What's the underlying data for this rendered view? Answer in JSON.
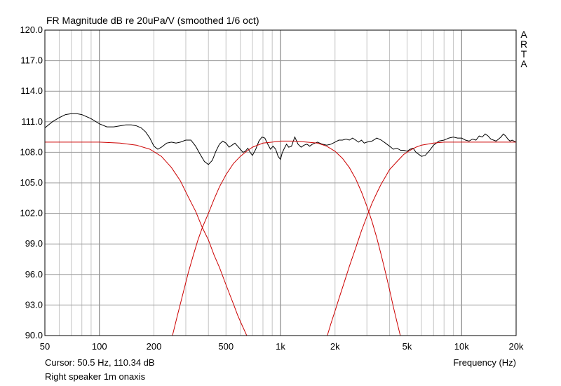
{
  "chart_data": {
    "type": "line",
    "title": "FR Magnitude dB re 20uPa/V (smoothed 1/6 oct)",
    "xlabel": "Frequency (Hz)",
    "ylabel": "",
    "x_scale": "log",
    "xlim": [
      50,
      20000
    ],
    "ylim": [
      90.0,
      120.0
    ],
    "grid": true,
    "x_ticks": [
      50,
      100,
      200,
      500,
      1000,
      2000,
      5000,
      10000,
      20000
    ],
    "x_tick_labels": [
      "50",
      "100",
      "200",
      "500",
      "1k",
      "2k",
      "5k",
      "10k",
      "20k"
    ],
    "y_ticks": [
      90.0,
      93.0,
      96.0,
      99.0,
      102.0,
      105.0,
      108.0,
      111.0,
      114.0,
      117.0,
      120.0
    ],
    "y_tick_labels": [
      "90.0",
      "93.0",
      "96.0",
      "99.0",
      "102.0",
      "105.0",
      "108.0",
      "111.0",
      "114.0",
      "117.0",
      "120.0"
    ],
    "series": [
      {
        "color": "#000000",
        "x": [
          50,
          55,
          60,
          65,
          70,
          75,
          80,
          90,
          100,
          110,
          120,
          130,
          140,
          150,
          160,
          170,
          180,
          190,
          200,
          210,
          220,
          235,
          250,
          265,
          280,
          300,
          320,
          340,
          360,
          380,
          400,
          420,
          440,
          460,
          480,
          500,
          520,
          540,
          560,
          580,
          600,
          620,
          640,
          660,
          680,
          700,
          730,
          760,
          790,
          820,
          850,
          880,
          910,
          940,
          970,
          1000,
          1020,
          1050,
          1080,
          1110,
          1150,
          1200,
          1250,
          1300,
          1350,
          1400,
          1450,
          1500,
          1600,
          1700,
          1800,
          1900,
          2000,
          2100,
          2200,
          2300,
          2400,
          2500,
          2600,
          2700,
          2800,
          2900,
          3000,
          3200,
          3400,
          3600,
          3800,
          4000,
          4200,
          4400,
          4600,
          4800,
          5000,
          5200,
          5400,
          5600,
          5800,
          6000,
          6300,
          6600,
          7000,
          7500,
          8000,
          8500,
          9000,
          9500,
          10000,
          10500,
          11000,
          11500,
          12000,
          12500,
          13000,
          13500,
          14000,
          14500,
          15000,
          15500,
          16000,
          16500,
          17000,
          17500,
          18000,
          18500,
          19000,
          20000
        ],
        "y": [
          110.4,
          111.0,
          111.4,
          111.7,
          111.8,
          111.8,
          111.7,
          111.3,
          110.8,
          110.5,
          110.5,
          110.6,
          110.7,
          110.7,
          110.6,
          110.4,
          110.0,
          109.4,
          108.6,
          108.3,
          108.5,
          108.9,
          109.0,
          108.9,
          109.0,
          109.2,
          109.2,
          108.6,
          107.8,
          107.1,
          106.8,
          107.2,
          108.1,
          108.8,
          109.1,
          108.9,
          108.5,
          108.7,
          108.9,
          108.6,
          108.3,
          108.0,
          108.1,
          108.4,
          108.0,
          107.7,
          108.3,
          109.1,
          109.5,
          109.4,
          108.8,
          108.3,
          108.6,
          108.3,
          107.6,
          107.3,
          107.9,
          108.4,
          108.8,
          108.5,
          108.6,
          109.5,
          108.8,
          108.5,
          108.7,
          108.8,
          108.6,
          108.8,
          109.0,
          108.8,
          108.7,
          108.8,
          109.0,
          109.2,
          109.2,
          109.3,
          109.2,
          109.4,
          109.2,
          109.0,
          109.2,
          108.9,
          109.0,
          109.1,
          109.4,
          109.2,
          108.9,
          108.6,
          108.3,
          108.4,
          108.2,
          108.2,
          108.1,
          108.3,
          108.4,
          108.0,
          107.8,
          107.6,
          107.7,
          108.1,
          108.7,
          109.1,
          109.2,
          109.4,
          109.5,
          109.4,
          109.4,
          109.2,
          109.1,
          109.3,
          109.2,
          109.6,
          109.5,
          109.8,
          109.6,
          109.3,
          109.2,
          109.1,
          109.3,
          109.5,
          109.8,
          109.6,
          109.3,
          109.1,
          109.2,
          109.0
        ]
      },
      {
        "color": "#cc0000",
        "x": [
          50,
          70,
          100,
          130,
          160,
          190,
          220,
          250,
          280,
          310,
          340,
          370,
          400,
          430,
          460,
          490,
          520,
          550,
          580,
          610,
          640,
          670
        ],
        "y": [
          109.0,
          109.0,
          109.0,
          108.9,
          108.7,
          108.3,
          107.6,
          106.5,
          105.2,
          103.6,
          102.2,
          100.6,
          99.4,
          97.9,
          96.7,
          95.4,
          94.2,
          93.1,
          92.0,
          91.1,
          90.3,
          89.5
        ]
      },
      {
        "color": "#cc0000",
        "x": [
          250,
          270,
          290,
          310,
          330,
          350,
          370,
          400,
          430,
          460,
          500,
          550,
          600,
          650,
          700,
          800,
          900,
          1000,
          1200,
          1400,
          1600,
          1800,
          2000,
          2200,
          2400,
          2600,
          2800,
          3000,
          3200,
          3400,
          3600,
          3800,
          4000,
          4200,
          4400,
          4600,
          4800
        ],
        "y": [
          89.6,
          92.0,
          94.2,
          96.2,
          97.9,
          99.4,
          100.6,
          102.0,
          103.4,
          104.6,
          105.8,
          106.9,
          107.6,
          108.1,
          108.5,
          108.9,
          109.0,
          109.1,
          109.1,
          109.0,
          108.9,
          108.6,
          108.1,
          107.4,
          106.5,
          105.4,
          104.1,
          102.7,
          101.2,
          99.6,
          97.9,
          96.2,
          94.5,
          92.8,
          91.3,
          89.9,
          89.4
        ]
      },
      {
        "color": "#cc0000",
        "x": [
          1800,
          1900,
          2000,
          2100,
          2200,
          2400,
          2600,
          2800,
          3000,
          3200,
          3400,
          3600,
          3800,
          4000,
          4400,
          4800,
          5200,
          5600,
          6000,
          7000,
          8000,
          9000,
          10000,
          12000,
          14000,
          16000,
          20000
        ],
        "y": [
          89.8,
          91.2,
          92.4,
          93.6,
          94.7,
          96.8,
          98.6,
          100.3,
          101.7,
          103.0,
          104.0,
          104.9,
          105.6,
          106.3,
          107.1,
          107.8,
          108.2,
          108.5,
          108.7,
          108.9,
          109.0,
          109.0,
          109.0,
          109.0,
          109.0,
          109.0,
          109.0
        ]
      }
    ]
  },
  "header": {
    "title": "FR Magnitude dB re 20uPa/V (smoothed 1/6 oct)"
  },
  "side_label": [
    "A",
    "R",
    "T",
    "A"
  ],
  "footer": {
    "cursor": "Cursor: 50.5 Hz, 110.34 dB",
    "note": "Right speaker 1m onaxis",
    "xlabel": "Frequency (Hz)"
  }
}
